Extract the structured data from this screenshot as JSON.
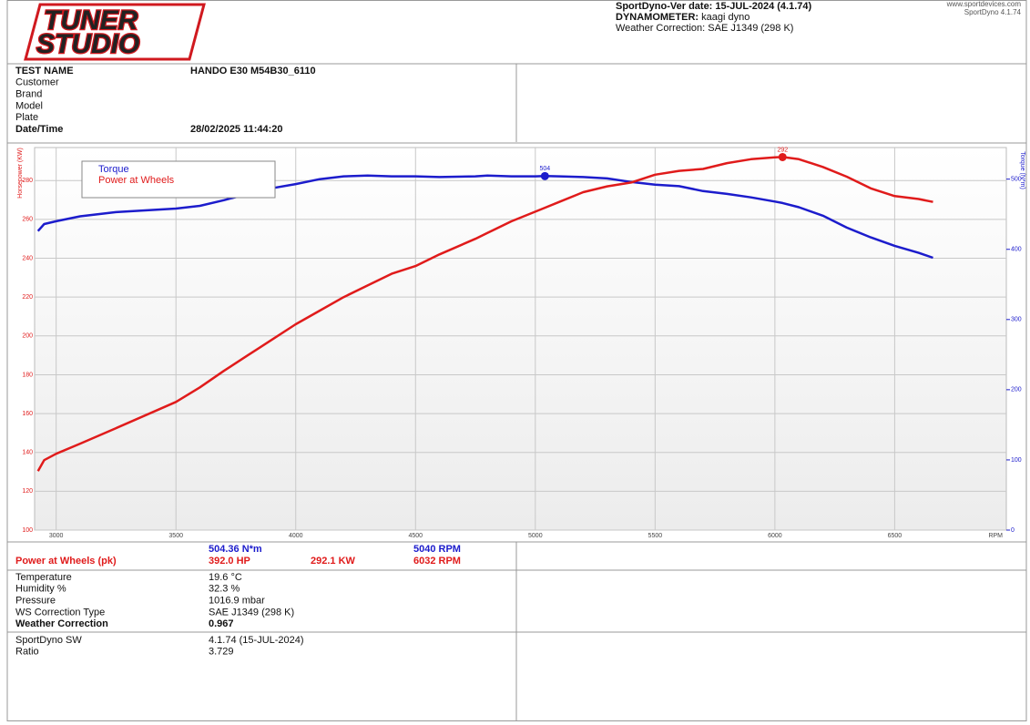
{
  "header": {
    "logo": [
      "TUNER",
      "STUDIO"
    ],
    "version": "SportDyno-Ver date: 15-JUL-2024 (4.1.74)",
    "dynamometer_label": "DYNAMOMETER:",
    "dynamometer": "kaagi dyno",
    "weather": "Weather Correction: SAE J1349 (298 K)",
    "website": "www.sportdevices.com",
    "software": "SportDyno 4.1.74"
  },
  "info": {
    "rows": [
      [
        "TEST NAME",
        "HANDO E30 M54B30_6110"
      ],
      [
        "Customer"
      ],
      [
        "Brand"
      ],
      [
        "Model"
      ],
      [
        "Plate"
      ],
      [
        "Date/Time",
        "28/02/2025 11:44:20"
      ]
    ]
  },
  "peaks": {
    "torque": "504.36 N*m",
    "torque_rpm": "5040 RPM",
    "power_label": "Power at Wheels (pk)",
    "power_hp": "392.0 HP",
    "power_kw": "292.1 KW",
    "power_rpm": "6032 RPM"
  },
  "conditions": {
    "rows": [
      [
        "Temperature",
        "19.6 °C"
      ],
      [
        "Humidity %",
        "32.3 %"
      ],
      [
        "Pressure",
        "1016.9 mbar"
      ],
      [
        "WS Correction Type",
        "SAE J1349 (298 K)"
      ],
      [
        "Weather Correction",
        "0.967"
      ]
    ]
  },
  "software": {
    "rows": [
      [
        "SportDyno SW",
        "4.1.74 (15-JUL-2024)"
      ],
      [
        "Ratio",
        "3.729"
      ]
    ]
  },
  "chart_data": {
    "type": "line",
    "xlabel": "RPM",
    "ylabel": "Horsepower (KW)",
    "y2label": "Torque (N*m)",
    "grid": true,
    "x": [
      2924,
      2950,
      3000,
      3100,
      3250,
      3500,
      3600,
      3700,
      3800,
      3900,
      4000,
      4100,
      4200,
      4300,
      4400,
      4500,
      4600,
      4750,
      4800,
      4900,
      5000,
      5040,
      5100,
      5200,
      5300,
      5400,
      5500,
      5600,
      5700,
      5800,
      5900,
      6000,
      6032,
      6100,
      6200,
      6300,
      6400,
      6500,
      6600,
      6660
    ],
    "series": [
      {
        "name": "Torque",
        "color": "#1c1ccc",
        "axis": "y2",
        "values": [
          426,
          436,
          440,
          447,
          453,
          458,
          462,
          470,
          479,
          487,
          493,
          500,
          504,
          505,
          504,
          504,
          503,
          504,
          505,
          504,
          504,
          504.36,
          504,
          503,
          501,
          496,
          492,
          490,
          483,
          479,
          474,
          468,
          466,
          460,
          448,
          431,
          417,
          405,
          395,
          388
        ]
      },
      {
        "name": "Power at Wheels",
        "color": "#e01b1b",
        "values": [
          130.4,
          136,
          139.3,
          144.5,
          152.5,
          166,
          173.5,
          182,
          190,
          198,
          206,
          213,
          220,
          226,
          232,
          236,
          242,
          250,
          253,
          259,
          264,
          266,
          269,
          274,
          277,
          279,
          283,
          285,
          286,
          289,
          291,
          292,
          292.1,
          291,
          287,
          282,
          276,
          272,
          270.5,
          269
        ]
      }
    ],
    "annotations": [
      {
        "text": "504",
        "x": 5040,
        "y": 504.36,
        "axis": "y2",
        "color": "#1c1ccc"
      },
      {
        "text": "292",
        "x": 6032,
        "y": 292.1,
        "color": "#e01b1b"
      }
    ],
    "xlim": [
      2910,
      6966
    ],
    "ylim": [
      100,
      297
    ],
    "y2lim": [
      0,
      545
    ],
    "xticks": [
      3000,
      3500,
      4000,
      4500,
      5000,
      5500,
      6000,
      6500
    ],
    "yticks": [
      100,
      120,
      140,
      160,
      180,
      200,
      220,
      240,
      260,
      280
    ],
    "y2ticks": [
      0,
      100,
      200,
      300,
      400,
      500
    ]
  }
}
